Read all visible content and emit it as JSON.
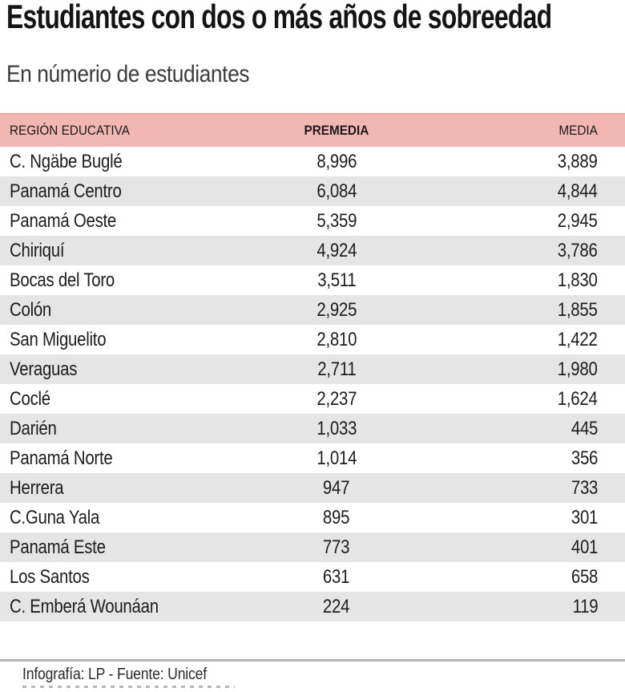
{
  "title": "Estudiantes con dos o más años de sobreedad",
  "subtitle": "En númerio de estudiantes",
  "table": {
    "columns": [
      "REGIÓN EDUCATIVA",
      "PREMEDIA",
      "MEDIA"
    ],
    "rows": [
      {
        "region": "C. Ngäbe Buglé",
        "premedia": "8,996",
        "media": "3,889"
      },
      {
        "region": "Panamá Centro",
        "premedia": "6,084",
        "media": "4,844"
      },
      {
        "region": "Panamá Oeste",
        "premedia": "5,359",
        "media": "2,945"
      },
      {
        "region": "Chiriquí",
        "premedia": "4,924",
        "media": "3,786"
      },
      {
        "region": "Bocas del Toro",
        "premedia": "3,511",
        "media": "1,830"
      },
      {
        "region": "Colón",
        "premedia": "2,925",
        "media": "1,855"
      },
      {
        "region": "San Miguelito",
        "premedia": "2,810",
        "media": "1,422"
      },
      {
        "region": "Veraguas",
        "premedia": "2,711",
        "media": "1,980"
      },
      {
        "region": "Coclé",
        "premedia": "2,237",
        "media": "1,624"
      },
      {
        "region": "Darién",
        "premedia": "1,033",
        "media": "445"
      },
      {
        "region": "Panamá Norte",
        "premedia": "1,014",
        "media": "356"
      },
      {
        "region": "Herrera",
        "premedia": "947",
        "media": "733"
      },
      {
        "region": "C.Guna Yala",
        "premedia": "895",
        "media": "301"
      },
      {
        "region": "Panamá Este",
        "premedia": "773",
        "media": "401"
      },
      {
        "region": "Los Santos",
        "premedia": "631",
        "media": "658"
      },
      {
        "region": "C. Emberá Wounáan",
        "premedia": "224",
        "media": "119"
      }
    ]
  },
  "footer": {
    "credit": "Infografía: LP - Fuente: Unicef"
  },
  "colors": {
    "header_bg": "#f2b7b2",
    "header_top_edge": "#eba49e",
    "row_alt_bg": "#e5e5e6",
    "rule": "#b5b5b5",
    "text": "#1a1a1a"
  },
  "chart_data": {
    "type": "table",
    "title": "Estudiantes con dos o más años de sobreedad",
    "subtitle": "En númerio de estudiantes",
    "columns": [
      "REGIÓN EDUCATIVA",
      "PREMEDIA",
      "MEDIA"
    ],
    "categories": [
      "C. Ngäbe Buglé",
      "Panamá Centro",
      "Panamá Oeste",
      "Chiriquí",
      "Bocas del Toro",
      "Colón",
      "San Miguelito",
      "Veraguas",
      "Coclé",
      "Darién",
      "Panamá Norte",
      "Herrera",
      "C.Guna Yala",
      "Panamá Este",
      "Los Santos",
      "C. Emberá Wounáan"
    ],
    "series": [
      {
        "name": "PREMEDIA",
        "values": [
          8996,
          6084,
          5359,
          4924,
          3511,
          2925,
          2810,
          2711,
          2237,
          1033,
          1014,
          947,
          895,
          773,
          631,
          224
        ]
      },
      {
        "name": "MEDIA",
        "values": [
          3889,
          4844,
          2945,
          3786,
          1830,
          1855,
          1422,
          1980,
          1624,
          445,
          356,
          733,
          301,
          401,
          658,
          119
        ]
      }
    ],
    "source": "Infografía: LP - Fuente: Unicef",
    "layout": {
      "row_striping": true,
      "header_bg": "#f2b7b2"
    }
  }
}
